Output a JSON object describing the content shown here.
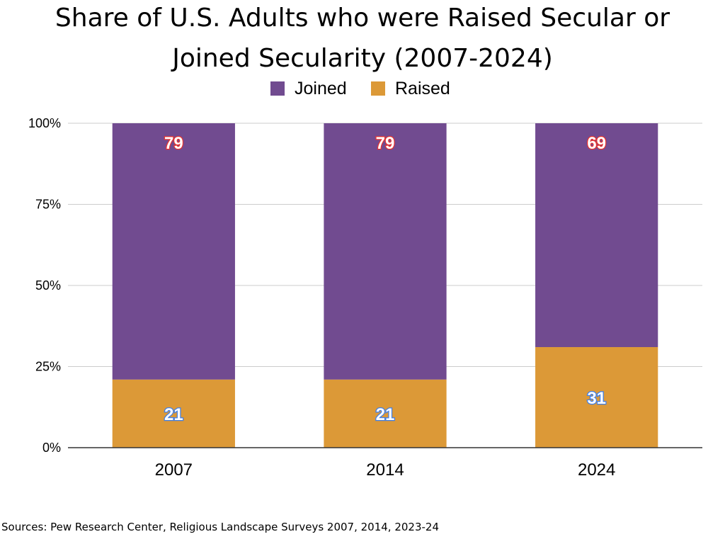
{
  "chart_data": {
    "type": "bar",
    "stacked": true,
    "title_lines": [
      "Share of U.S. Adults who were Raised Secular or",
      "Joined Secularity (2007-2024)"
    ],
    "categories": [
      "2007",
      "2014",
      "2024"
    ],
    "series": [
      {
        "name": "Raised",
        "values": [
          21,
          21,
          31
        ],
        "color": "#dc9937"
      },
      {
        "name": "Joined",
        "values": [
          79,
          79,
          69
        ],
        "color": "#714b90"
      }
    ],
    "legend": {
      "position": "top",
      "order": [
        "Joined",
        "Raised"
      ]
    },
    "y_ticks": [
      "0%",
      "25%",
      "50%",
      "75%",
      "100%"
    ],
    "y_tick_values": [
      0,
      25,
      50,
      75,
      100
    ],
    "ylim": [
      0,
      100
    ],
    "xlabel": "",
    "ylabel": "",
    "grid": true,
    "source": "Sources: Pew Research Center, Religious Landscape Surveys 2007, 2014, 2023-24"
  }
}
